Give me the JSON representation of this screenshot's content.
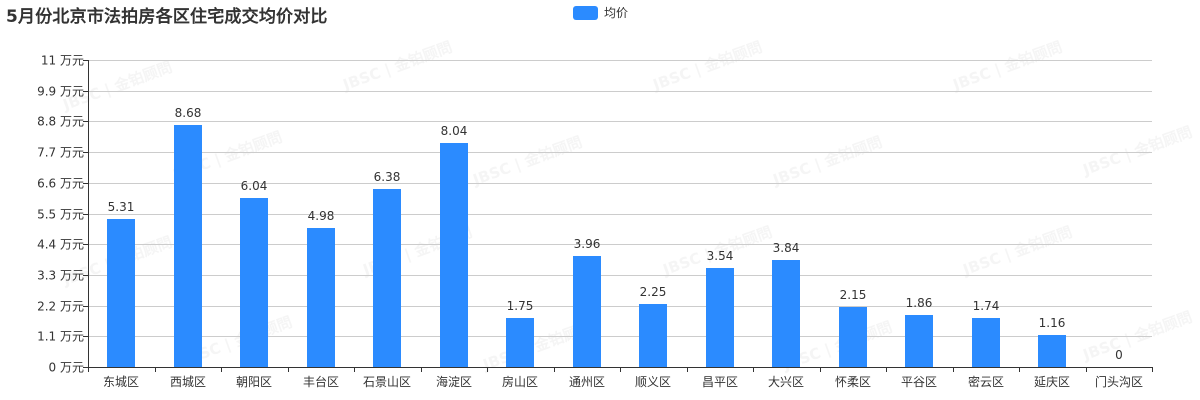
{
  "title": "5月份北京市法拍房各区住宅成交均价对比",
  "legend": {
    "label": "均价",
    "color": "#2b8bff"
  },
  "watermark": "JBSC | 金铂顾問",
  "colors": {
    "bar": "#2b8bff",
    "grid": "#cccccc",
    "axis": "#333333",
    "text": "#333333"
  },
  "y_axis": {
    "ticks": [
      "0 万元",
      "1.1 万元",
      "2.2 万元",
      "3.3 万元",
      "4.4 万元",
      "5.5 万元",
      "6.6 万元",
      "7.7 万元",
      "8.8 万元",
      "9.9 万元",
      "11 万元"
    ]
  },
  "chart_data": {
    "type": "bar",
    "title": "5月份北京市法拍房各区住宅成交均价对比",
    "xlabel": "",
    "ylabel": "万元",
    "ylim": [
      0,
      11
    ],
    "yticks": [
      0,
      1.1,
      2.2,
      3.3,
      4.4,
      5.5,
      6.6,
      7.7,
      8.8,
      9.9,
      11
    ],
    "grid": true,
    "legend_position": "top",
    "categories": [
      "东城区",
      "西城区",
      "朝阳区",
      "丰台区",
      "石景山区",
      "海淀区",
      "房山区",
      "通州区",
      "顺义区",
      "昌平区",
      "大兴区",
      "怀柔区",
      "平谷区",
      "密云区",
      "延庆区",
      "门头沟区"
    ],
    "series": [
      {
        "name": "均价",
        "values": [
          5.31,
          8.68,
          6.04,
          4.98,
          6.38,
          8.04,
          1.75,
          3.96,
          2.25,
          3.54,
          3.84,
          2.15,
          1.86,
          1.74,
          1.16,
          0
        ]
      }
    ],
    "value_labels": [
      "5.31",
      "8.68",
      "6.04",
      "4.98",
      "6.38",
      "8.04",
      "1.75",
      "3.96",
      "2.25",
      "3.54",
      "3.84",
      "2.15",
      "1.86",
      "1.74",
      "1.16",
      "0"
    ]
  }
}
